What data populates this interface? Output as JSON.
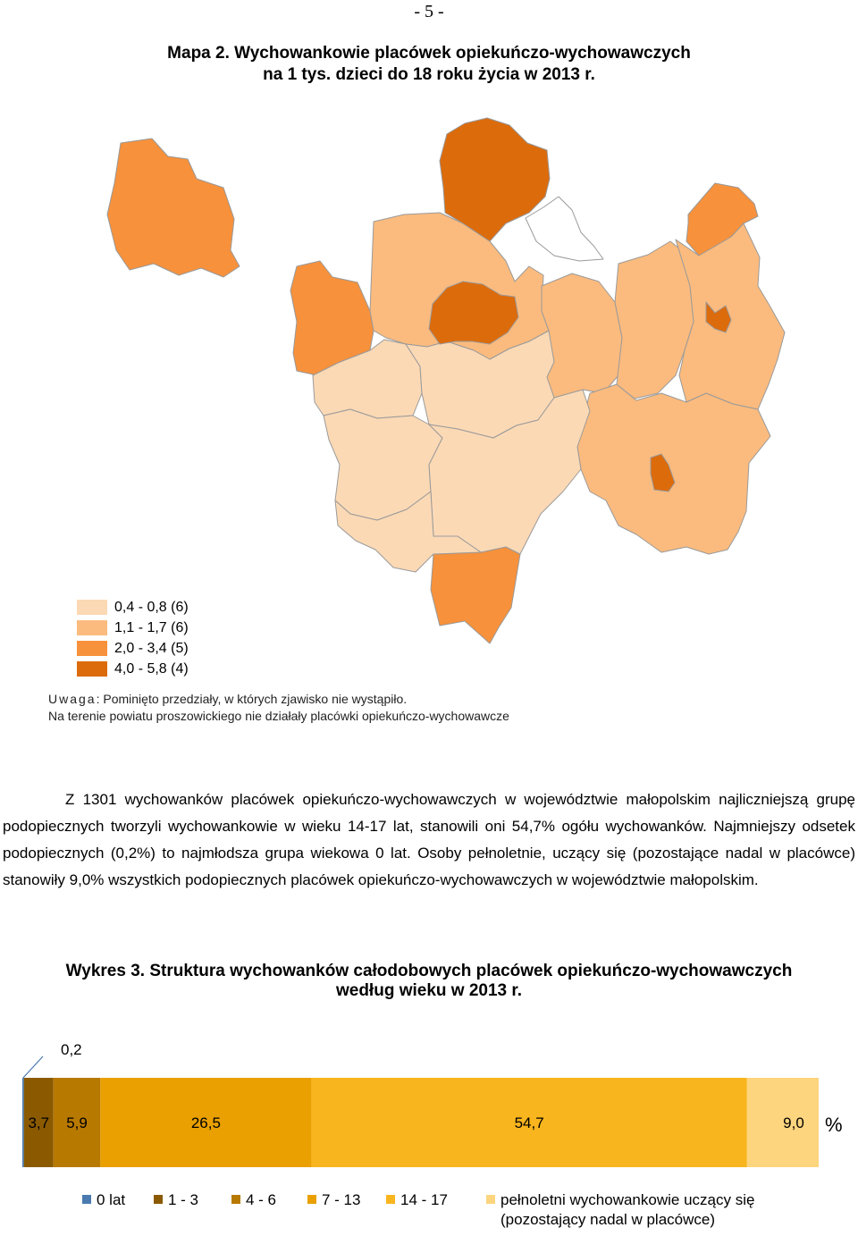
{
  "page_number": "- 5 -",
  "map": {
    "title_line1": "Mapa 2. Wychowankowie placówek opiekuńczo-wychowawczych",
    "title_line2": "na 1 tys. dzieci do 18 roku życia w 2013 r.",
    "legend": [
      {
        "label": "0,4 - 0,8 (6)",
        "color": "#fbd9b5"
      },
      {
        "label": "1,1 - 1,7 (6)",
        "color": "#fbbb7e"
      },
      {
        "label": "2,0 - 3,4 (5)",
        "color": "#f7913b"
      },
      {
        "label": "4,0 - 5,8 (4)",
        "color": "#dc6b0c"
      }
    ],
    "note_prefix": "Uwaga",
    "note_line1_rest": ": Pominięto przedziały, w których zjawisko nie wystąpiło.",
    "note_line2": "Na terenie powiatu proszowickiego nie działały placówki opiekuńczo-wychowawcze",
    "no_data_color": "#ffffff"
  },
  "paragraph": "Z 1301 wychowanków placówek opiekuńczo-wychowawczych w województwie małopolskim najliczniejszą grupę podopiecznych tworzyli wychowankowie w wieku 14-17 lat, stanowili oni 54,7% ogółu wychowanków. Najmniejszy odsetek podopiecznych (0,2%) to najmłodsza grupa wiekowa 0 lat. Osoby pełnoletnie, uczący się (pozostające nadal w placówce) stanowiły 9,0% wszystkich podopiecznych placówek opiekuńczo-wychowawczych w województwie małopolskim.",
  "chart_title_line1": "Wykres 3. Struktura wychowanków całodobowych placówek opiekuńczo-wychowawczych",
  "chart_title_line2": "według wieku w 2013 r.",
  "chart_data": {
    "type": "bar",
    "orientation": "horizontal-stacked-100",
    "unit_label": "%",
    "series": [
      {
        "name": "0 lat",
        "value": 0.2,
        "label": "0,2",
        "color": "#4a7ab0"
      },
      {
        "name": "1 - 3",
        "value": 3.7,
        "label": "3,7",
        "color": "#8b5a00"
      },
      {
        "name": "4 - 6",
        "value": 5.9,
        "label": "5,9",
        "color": "#b87900"
      },
      {
        "name": "7 - 13",
        "value": 26.5,
        "label": "26,5",
        "color": "#e9a000"
      },
      {
        "name": "14 - 17",
        "value": 54.7,
        "label": "54,7",
        "color": "#f9b51e"
      },
      {
        "name": "pełnoletni wychowankowie uczący się (pozostający nadal w placówce)",
        "value": 9.0,
        "label": "9,0",
        "color": "#fdd57e"
      }
    ],
    "legend_placement": "bottom"
  }
}
